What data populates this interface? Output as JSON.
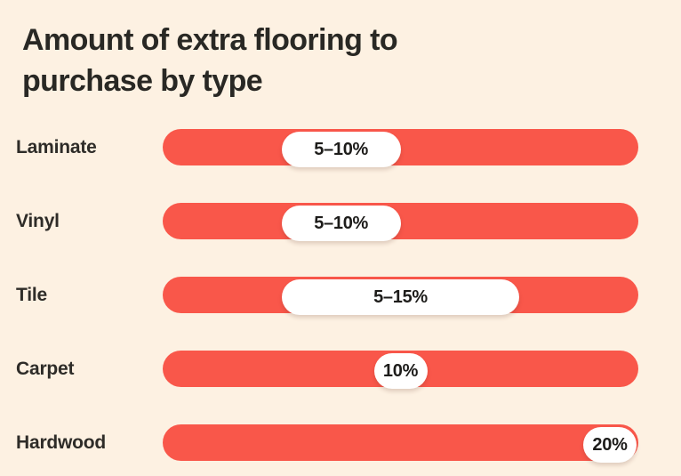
{
  "page": {
    "background_color": "#FDF1E2",
    "bar_color": "#F9574A",
    "pill_color": "#FFFFFF",
    "title_color": "#292824",
    "label_color": "#2E2C28"
  },
  "chart_data": {
    "type": "bar",
    "orientation": "horizontal",
    "title": "Amount of extra flooring to purchase by type",
    "xlabel": "",
    "ylabel": "",
    "grid": false,
    "legend_position": "none",
    "scale": {
      "unit": "%",
      "min": 0,
      "max": 20
    },
    "categories": [
      "Laminate",
      "Vinyl",
      "Tile",
      "Carpet",
      "Hardwood"
    ],
    "rows": [
      {
        "label": "Laminate",
        "value_label": "5–10%",
        "range_pct": [
          5,
          10
        ]
      },
      {
        "label": "Vinyl",
        "value_label": "5–10%",
        "range_pct": [
          5,
          10
        ]
      },
      {
        "label": "Tile",
        "value_label": "5–15%",
        "range_pct": [
          5,
          15
        ]
      },
      {
        "label": "Carpet",
        "value_label": "10%",
        "value_pct": 10
      },
      {
        "label": "Hardwood",
        "value_label": "20%",
        "value_pct": 20
      }
    ]
  }
}
